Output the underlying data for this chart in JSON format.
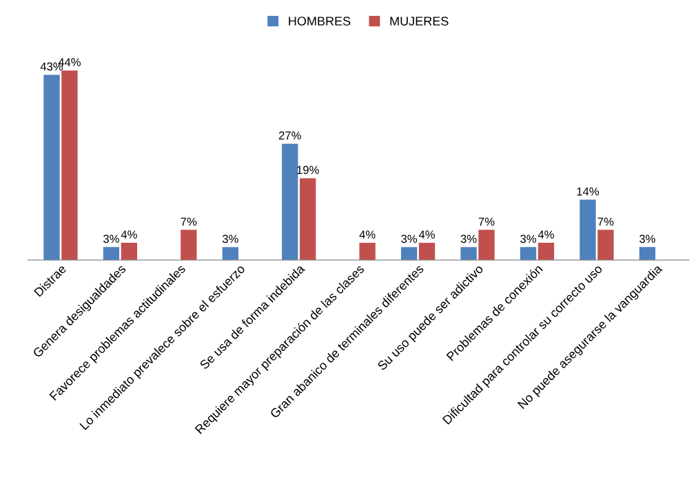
{
  "chart_data": {
    "type": "bar",
    "categories": [
      "Distrae",
      "Genera desigualdades",
      "Favorece problemas actitudinales",
      "Lo inmediato prevalece sobre el esfuerzo",
      "Se usa de forma indebida",
      "Requiere mayor preparación de las clases",
      "Gran abanico de terminales diferentes",
      "Su uso puede ser adictivo",
      "Problemas de conexión",
      "Dificultad para controlar su correcto uso",
      "No puede asegurarse la vanguardia"
    ],
    "series": [
      {
        "name": "HOMBRES",
        "color": "#4f81bd",
        "values": [
          43,
          3,
          null,
          3,
          27,
          null,
          3,
          3,
          3,
          14,
          3
        ],
        "value_labels": [
          "43%",
          "3%",
          null,
          "3%",
          "27%",
          null,
          "3%",
          "3%",
          "3%",
          "14%",
          "3%"
        ]
      },
      {
        "name": "MUJERES",
        "color": "#c0504d",
        "values": [
          44,
          4,
          7,
          null,
          19,
          4,
          4,
          7,
          4,
          7,
          null
        ],
        "value_labels": [
          "44%",
          "4%",
          "7%",
          null,
          "19%",
          "4%",
          "4%",
          "7%",
          "4%",
          "7%",
          null
        ]
      }
    ],
    "tick_labels": "x",
    "grid": false,
    "legend": "top"
  }
}
